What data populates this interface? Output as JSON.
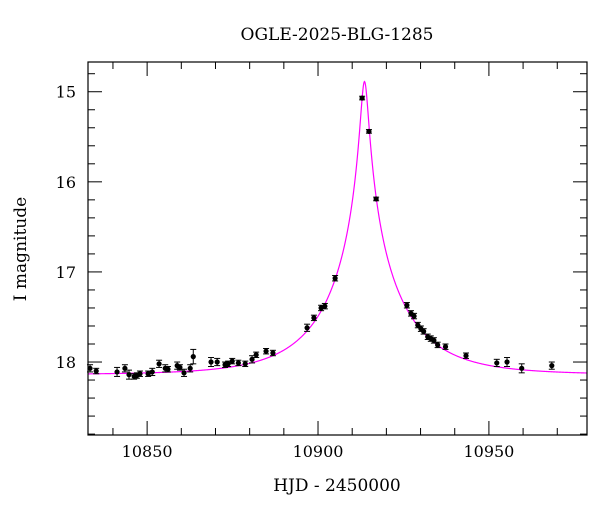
{
  "chart_data": {
    "type": "scatter",
    "title": "OGLE-2025-BLG-1285",
    "xlabel": "HJD - 2450000",
    "ylabel": "I magnitude",
    "xlim": [
      10832.7,
      10978.7
    ],
    "ylim": [
      18.81,
      14.67
    ],
    "y_inverted": true,
    "x_ticks": [
      10850,
      10900,
      10950
    ],
    "x_tick_labels": [
      "10850",
      "10900",
      "10950"
    ],
    "y_ticks": [
      15,
      16,
      17,
      18
    ],
    "y_tick_labels": [
      "15",
      "16",
      "17",
      "18"
    ],
    "x_minor_step": 10,
    "y_minor_step": 0.2,
    "grid": false,
    "colors": {
      "points": "#000000",
      "model": "#ff00ff"
    },
    "model": {
      "kind": "point-lens",
      "t0": 10913.6,
      "tE": 21.7,
      "u0": 0.05,
      "baseline_mag": 18.14
    },
    "points": [
      {
        "t": 10833.3,
        "mag": 18.07,
        "err": 0.04
      },
      {
        "t": 10835.1,
        "mag": 18.1,
        "err": 0.03
      },
      {
        "t": 10841.2,
        "mag": 18.11,
        "err": 0.05
      },
      {
        "t": 10843.5,
        "mag": 18.07,
        "err": 0.04
      },
      {
        "t": 10844.7,
        "mag": 18.14,
        "err": 0.05
      },
      {
        "t": 10846.2,
        "mag": 18.16,
        "err": 0.03
      },
      {
        "t": 10847.0,
        "mag": 18.15,
        "err": 0.03
      },
      {
        "t": 10847.9,
        "mag": 18.13,
        "err": 0.03
      },
      {
        "t": 10850.3,
        "mag": 18.13,
        "err": 0.03
      },
      {
        "t": 10851.5,
        "mag": 18.11,
        "err": 0.04
      },
      {
        "t": 10853.5,
        "mag": 18.02,
        "err": 0.04
      },
      {
        "t": 10855.3,
        "mag": 18.07,
        "err": 0.04
      },
      {
        "t": 10856.1,
        "mag": 18.08,
        "err": 0.03
      },
      {
        "t": 10858.8,
        "mag": 18.04,
        "err": 0.04
      },
      {
        "t": 10859.6,
        "mag": 18.06,
        "err": 0.03
      },
      {
        "t": 10860.8,
        "mag": 18.12,
        "err": 0.04
      },
      {
        "t": 10862.6,
        "mag": 18.07,
        "err": 0.04
      },
      {
        "t": 10863.5,
        "mag": 17.94,
        "err": 0.08
      },
      {
        "t": 10868.7,
        "mag": 18.0,
        "err": 0.05
      },
      {
        "t": 10870.5,
        "mag": 18.0,
        "err": 0.04
      },
      {
        "t": 10872.8,
        "mag": 18.03,
        "err": 0.03
      },
      {
        "t": 10873.7,
        "mag": 18.02,
        "err": 0.03
      },
      {
        "t": 10874.9,
        "mag": 17.99,
        "err": 0.03
      },
      {
        "t": 10876.7,
        "mag": 18.01,
        "err": 0.03
      },
      {
        "t": 10878.7,
        "mag": 18.02,
        "err": 0.03
      },
      {
        "t": 10880.7,
        "mag": 17.97,
        "err": 0.04
      },
      {
        "t": 10881.9,
        "mag": 17.92,
        "err": 0.03
      },
      {
        "t": 10884.8,
        "mag": 17.88,
        "err": 0.03
      },
      {
        "t": 10886.8,
        "mag": 17.9,
        "err": 0.03
      },
      {
        "t": 10896.8,
        "mag": 17.62,
        "err": 0.04
      },
      {
        "t": 10898.8,
        "mag": 17.51,
        "err": 0.03
      },
      {
        "t": 10900.9,
        "mag": 17.4,
        "err": 0.03
      },
      {
        "t": 10902.0,
        "mag": 17.38,
        "err": 0.03
      },
      {
        "t": 10905.0,
        "mag": 17.07,
        "err": 0.03
      },
      {
        "t": 10912.9,
        "mag": 15.07,
        "err": 0.02
      },
      {
        "t": 10914.9,
        "mag": 15.44,
        "err": 0.02
      },
      {
        "t": 10917.0,
        "mag": 16.19,
        "err": 0.02
      },
      {
        "t": 10926.0,
        "mag": 17.37,
        "err": 0.03
      },
      {
        "t": 10927.2,
        "mag": 17.46,
        "err": 0.03
      },
      {
        "t": 10928.1,
        "mag": 17.49,
        "err": 0.03
      },
      {
        "t": 10929.2,
        "mag": 17.59,
        "err": 0.03
      },
      {
        "t": 10930.1,
        "mag": 17.63,
        "err": 0.03
      },
      {
        "t": 10930.9,
        "mag": 17.66,
        "err": 0.03
      },
      {
        "t": 10932.1,
        "mag": 17.72,
        "err": 0.03
      },
      {
        "t": 10933.0,
        "mag": 17.74,
        "err": 0.03
      },
      {
        "t": 10933.9,
        "mag": 17.76,
        "err": 0.03
      },
      {
        "t": 10935.0,
        "mag": 17.81,
        "err": 0.03
      },
      {
        "t": 10937.3,
        "mag": 17.83,
        "err": 0.03
      },
      {
        "t": 10943.3,
        "mag": 17.93,
        "err": 0.03
      },
      {
        "t": 10952.3,
        "mag": 18.01,
        "err": 0.04
      },
      {
        "t": 10955.3,
        "mag": 18.0,
        "err": 0.05
      },
      {
        "t": 10959.6,
        "mag": 18.07,
        "err": 0.05
      },
      {
        "t": 10968.4,
        "mag": 18.04,
        "err": 0.04
      }
    ]
  }
}
